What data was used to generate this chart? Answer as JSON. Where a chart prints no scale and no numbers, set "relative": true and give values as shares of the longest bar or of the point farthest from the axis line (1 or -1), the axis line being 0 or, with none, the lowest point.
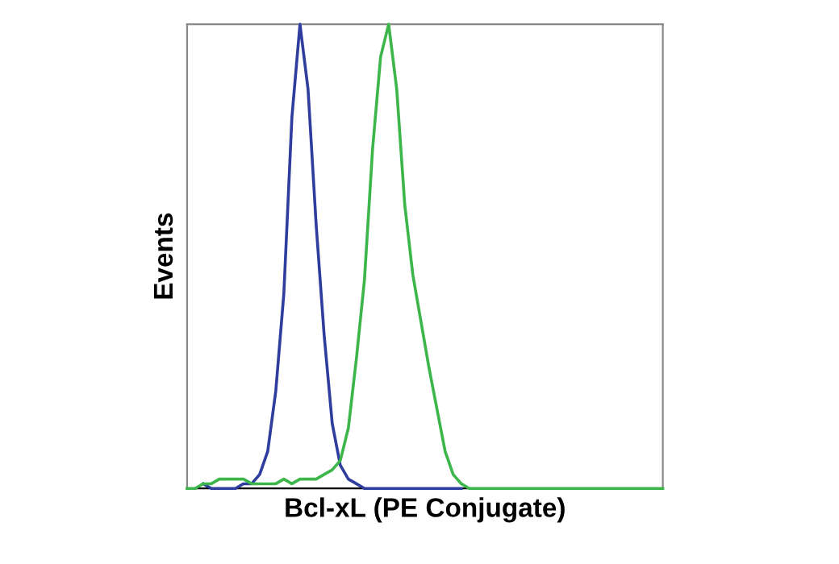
{
  "chart_data": {
    "type": "line",
    "relative": true,
    "xlabel": "Bcl-xL (PE Conjugate)",
    "ylabel": "Events",
    "tick_labels": false,
    "categories": [
      null,
      null,
      null,
      null,
      null,
      null,
      null,
      null,
      null,
      null,
      null,
      null,
      null,
      null,
      null,
      null,
      null,
      null,
      null,
      null,
      null,
      null,
      null,
      null,
      null,
      null,
      null,
      null,
      null,
      null,
      null,
      null,
      null,
      null,
      null,
      null,
      null,
      null,
      null,
      null,
      null,
      null,
      null,
      null,
      null,
      null,
      null,
      null,
      null,
      null,
      null,
      null,
      null,
      null,
      null,
      null,
      null,
      null,
      null,
      null
    ],
    "series": [
      {
        "color": "#2e3d9e",
        "values": [
          null,
          null,
          0.01,
          0,
          0,
          0,
          0,
          0.01,
          0.01,
          0.03,
          0.08,
          0.21,
          0.42,
          0.8,
          1.0,
          0.86,
          0.57,
          0.33,
          0.14,
          0.05,
          0.02,
          0.01,
          0,
          0,
          0,
          0,
          0,
          0,
          0,
          0,
          0,
          0,
          0,
          0,
          0,
          null,
          null,
          null,
          null,
          null,
          null,
          null,
          null,
          null,
          null,
          null,
          null,
          null,
          null,
          null,
          null,
          null,
          null,
          null,
          null,
          null,
          null,
          null,
          null,
          null
        ]
      },
      {
        "color": "#3cb64a",
        "values": [
          0,
          0,
          0.01,
          0.01,
          0.02,
          0.02,
          0.02,
          0.02,
          0.01,
          0.01,
          0.01,
          0.01,
          0.02,
          0.01,
          0.02,
          0.02,
          0.02,
          0.03,
          0.04,
          0.06,
          0.13,
          0.28,
          0.45,
          0.73,
          0.93,
          1.0,
          0.86,
          0.61,
          0.46,
          0.36,
          0.26,
          0.17,
          0.08,
          0.03,
          0.01,
          0,
          0,
          0,
          0,
          0,
          0,
          0,
          0,
          0,
          0,
          0,
          0,
          0,
          0,
          0,
          0,
          0,
          0,
          0,
          0,
          0,
          0,
          0,
          0,
          0
        ]
      }
    ]
  }
}
